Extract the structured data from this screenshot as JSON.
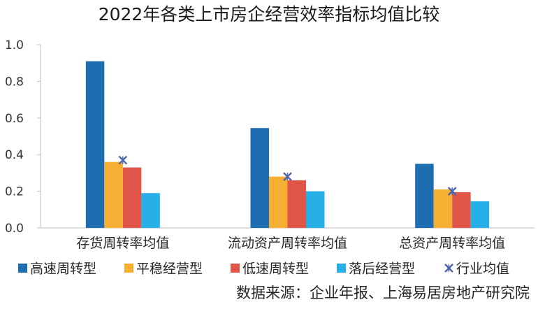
{
  "title": "2022年各类上市房企经营效率指标均值比较",
  "source": "数据来源：企业年报、上海易居房地产研究院",
  "chart_data": {
    "type": "bar",
    "title": "2022年各类上市房企经营效率指标均值比较",
    "categories": [
      "存货周转率均值",
      "流动资产周转率均值",
      "总资产周转率均值"
    ],
    "series": [
      {
        "name": "高速周转型",
        "color": "#1f6db1",
        "values": [
          0.91,
          0.545,
          0.35
        ]
      },
      {
        "name": "平稳经营型",
        "color": "#f5af33",
        "values": [
          0.36,
          0.28,
          0.21
        ]
      },
      {
        "name": "低速周转型",
        "color": "#e05548",
        "values": [
          0.33,
          0.26,
          0.195
        ]
      },
      {
        "name": "落后经营型",
        "color": "#27afe8",
        "values": [
          0.19,
          0.2,
          0.145
        ]
      }
    ],
    "overlay": {
      "name": "行业均值",
      "marker": "x-star",
      "color": "#4e63ad",
      "values": [
        0.37,
        0.28,
        0.2
      ]
    },
    "ylim": [
      0,
      1.0
    ],
    "yticks": [
      "0.0",
      "0.2",
      "0.4",
      "0.6",
      "0.8",
      "1.0"
    ],
    "ytick_values": [
      0,
      0.2,
      0.4,
      0.6,
      0.8,
      1.0
    ],
    "grid": false,
    "legend_position": "bottom"
  }
}
